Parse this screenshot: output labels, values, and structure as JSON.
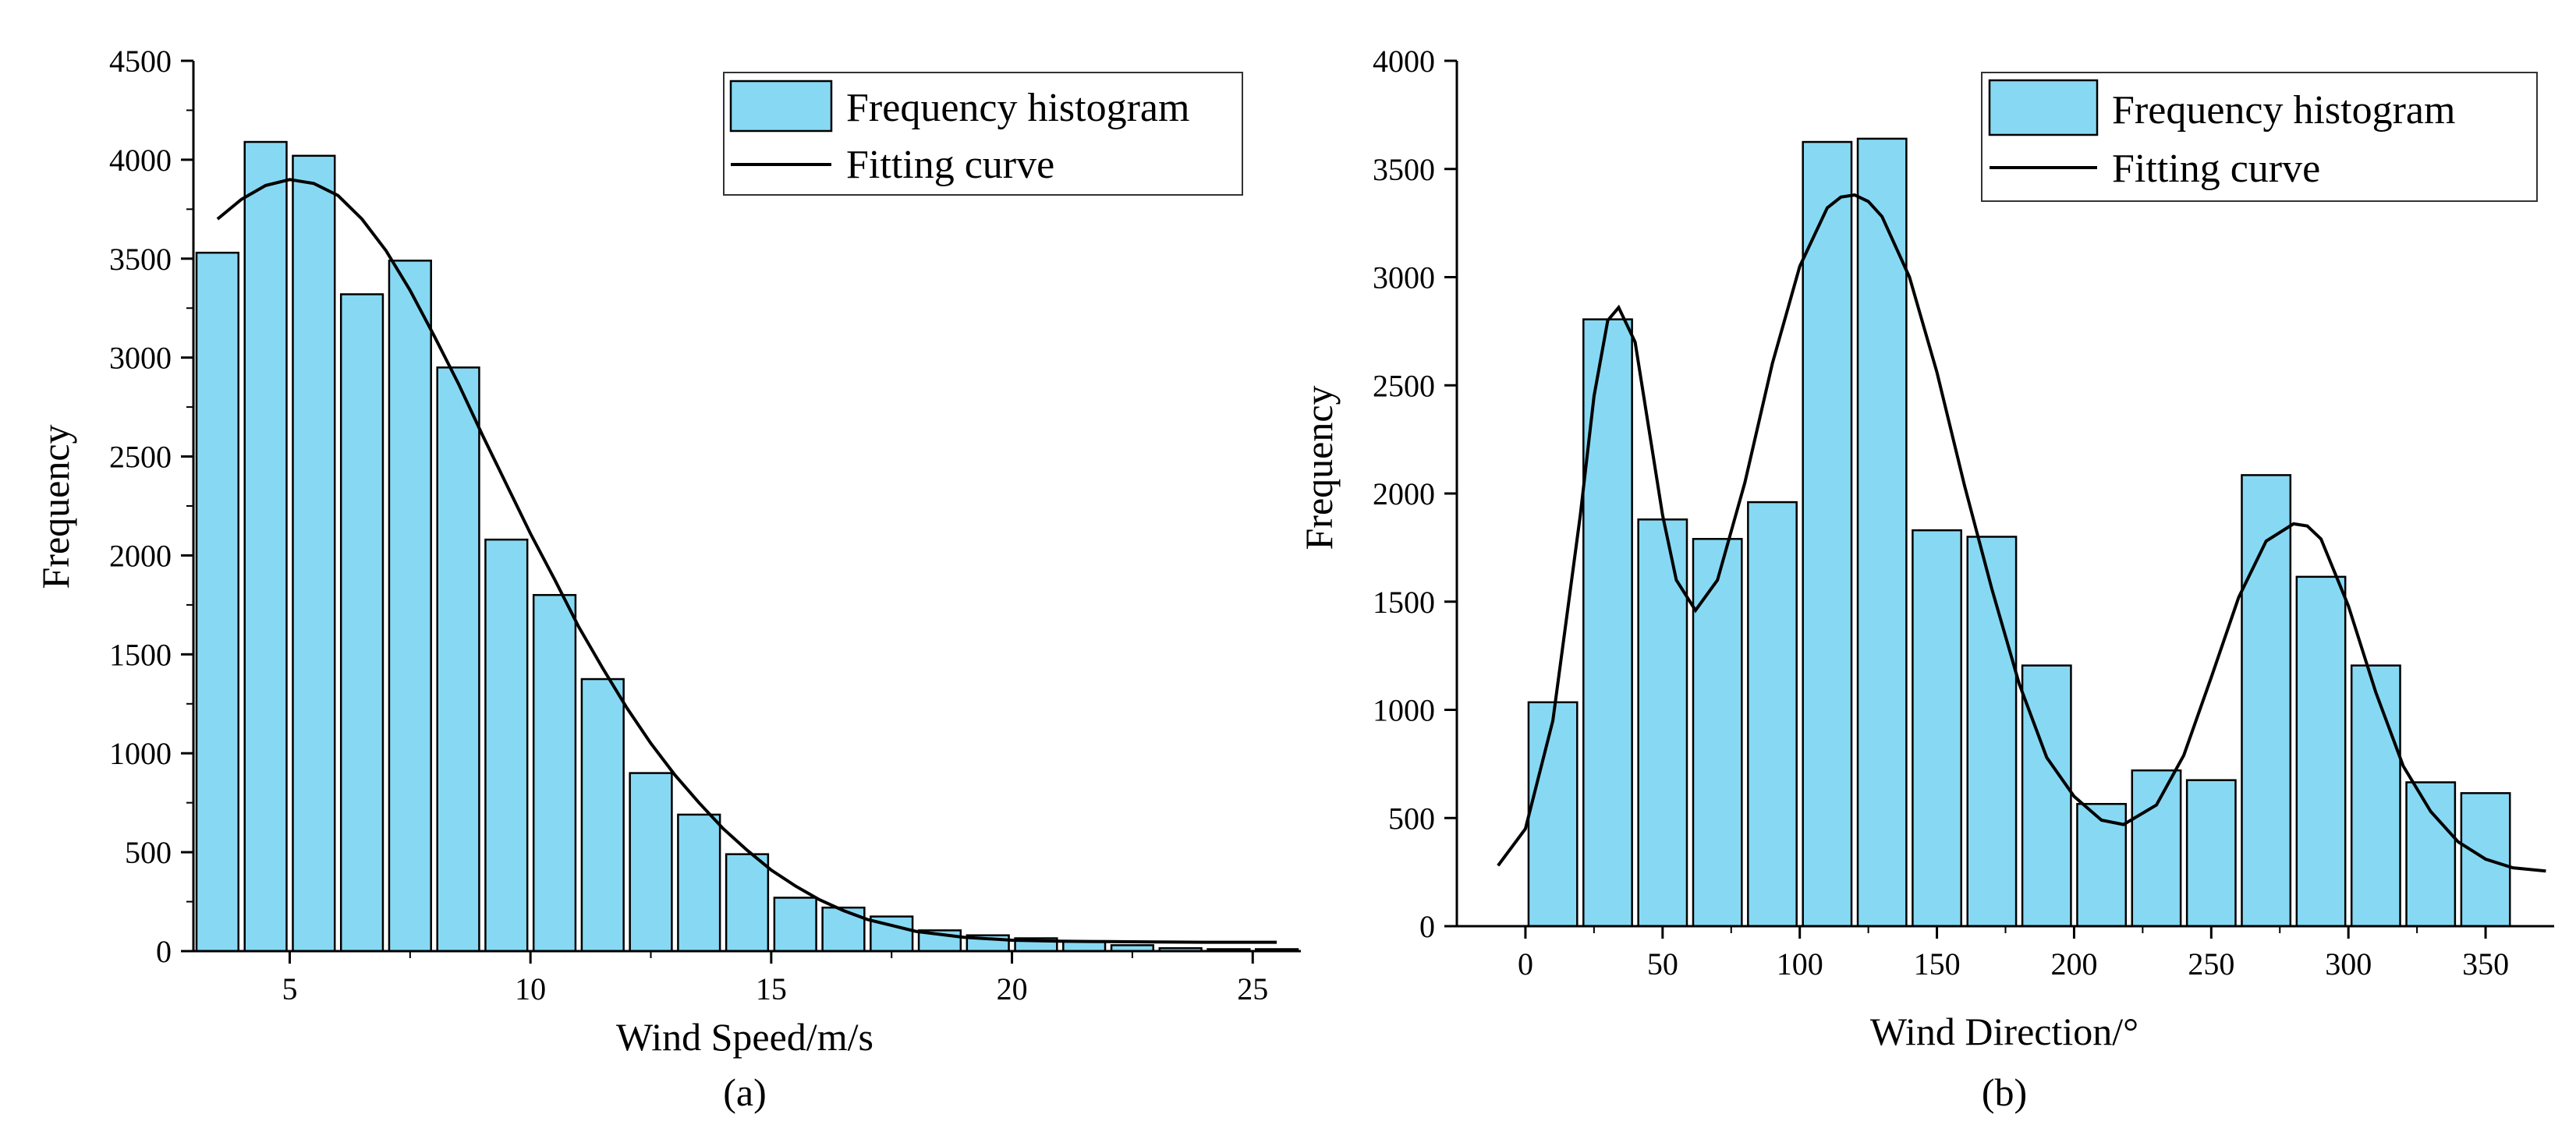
{
  "chart_data": [
    {
      "type": "bar",
      "panel_label": "(a)",
      "xlabel": "Wind Speed/m/s",
      "ylabel": "Frequency",
      "xlim": [
        3,
        26
      ],
      "ylim": [
        0,
        4500
      ],
      "xticks": [
        5,
        10,
        15,
        20,
        25
      ],
      "yticks": [
        0,
        500,
        1000,
        1500,
        2000,
        2500,
        3000,
        3500,
        4000,
        4500
      ],
      "bin_width": 1,
      "bar_fill": "#87d9f3",
      "curve_color": "#000000",
      "legend": {
        "placement": "top-right",
        "entries": [
          "Frequency histogram",
          "Fitting curve"
        ]
      },
      "bins": [
        3.5,
        4.5,
        5.5,
        6.5,
        7.5,
        8.5,
        9.5,
        10.5,
        11.5,
        12.5,
        13.5,
        14.5,
        15.5,
        16.5,
        17.5,
        18.5,
        19.5,
        20.5,
        21.5,
        22.5,
        23.5,
        24.5,
        25.5
      ],
      "values": [
        3530,
        4090,
        4020,
        3320,
        3490,
        2950,
        2080,
        1800,
        1375,
        900,
        690,
        490,
        270,
        220,
        175,
        105,
        80,
        65,
        50,
        30,
        15,
        10,
        10
      ],
      "fitting_curve": {
        "x": [
          3.5,
          4,
          4.5,
          5,
          5.5,
          6,
          6.5,
          7,
          7.5,
          8,
          8.5,
          9,
          9.5,
          10,
          10.5,
          11,
          11.5,
          12,
          12.5,
          13,
          13.5,
          14,
          14.5,
          15,
          15.5,
          16,
          16.5,
          17,
          18,
          19,
          20,
          21,
          22,
          23,
          24,
          25.5
        ],
        "y": [
          3700,
          3800,
          3870,
          3900,
          3880,
          3820,
          3700,
          3540,
          3340,
          3110,
          2870,
          2610,
          2360,
          2110,
          1880,
          1640,
          1430,
          1230,
          1050,
          890,
          750,
          620,
          510,
          410,
          330,
          260,
          205,
          160,
          100,
          70,
          55,
          50,
          48,
          46,
          45,
          45
        ]
      }
    },
    {
      "type": "bar",
      "panel_label": "(b)",
      "xlabel": "Wind Direction/°",
      "ylabel": "Frequency",
      "xlim": [
        -25,
        375
      ],
      "ylim": [
        0,
        4000
      ],
      "xticks": [
        0,
        50,
        100,
        150,
        200,
        250,
        300,
        350
      ],
      "yticks": [
        0,
        500,
        1000,
        1500,
        2000,
        2500,
        3000,
        3500,
        4000
      ],
      "bin_width": 20,
      "bar_fill": "#87d9f3",
      "curve_color": "#000000",
      "legend": {
        "placement": "top-right",
        "entries": [
          "Frequency histogram",
          "Fitting curve"
        ]
      },
      "bins": [
        10,
        30,
        50,
        70,
        90,
        110,
        130,
        150,
        170,
        190,
        210,
        230,
        250,
        270,
        290,
        310,
        330,
        350
      ],
      "values": [
        1035,
        2805,
        1880,
        1790,
        1960,
        3625,
        3640,
        1830,
        1800,
        1205,
        565,
        720,
        675,
        2085,
        1615,
        1205,
        665,
        615
      ],
      "fitting_curve": {
        "x": [
          -10,
          0,
          10,
          20,
          25,
          30,
          34,
          40,
          45,
          50,
          55,
          62,
          70,
          80,
          90,
          100,
          110,
          115,
          120,
          125,
          130,
          140,
          150,
          160,
          170,
          180,
          190,
          200,
          210,
          218,
          230,
          240,
          250,
          260,
          270,
          280,
          285,
          290,
          300,
          310,
          320,
          330,
          340,
          350,
          360,
          372
        ],
        "y": [
          280,
          450,
          950,
          1900,
          2450,
          2800,
          2860,
          2700,
          2300,
          1900,
          1600,
          1460,
          1600,
          2050,
          2600,
          3050,
          3320,
          3370,
          3380,
          3350,
          3280,
          3000,
          2560,
          2040,
          1560,
          1120,
          780,
          600,
          490,
          470,
          560,
          790,
          1150,
          1520,
          1780,
          1860,
          1850,
          1790,
          1480,
          1080,
          740,
          530,
          390,
          310,
          270,
          255
        ]
      }
    }
  ]
}
